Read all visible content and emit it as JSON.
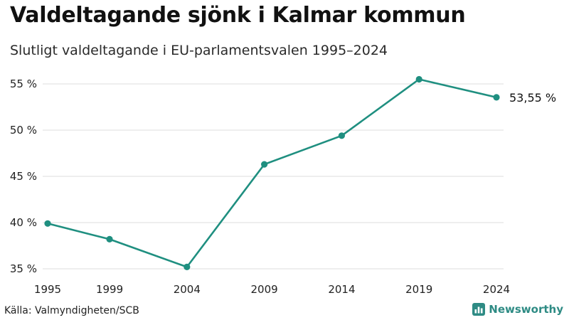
{
  "header": {
    "title": "Valdeltagande sjönk i Kalmar kommun",
    "subtitle": "Slutligt valdeltagande i EU-parlamentsvalen 1995–2024"
  },
  "footer": {
    "source": "Källa: Valmyndigheten/SCB",
    "brand": "Newsworthy",
    "brand_icon": "bar-chart-logo-icon"
  },
  "colors": {
    "line": "#1f8f80",
    "grid": "#dcdcdc",
    "brand": "#2e8b84"
  },
  "chart_data": {
    "type": "line",
    "title": "Valdeltagande sjönk i Kalmar kommun",
    "subtitle": "Slutligt valdeltagande i EU-parlamentsvalen 1995–2024",
    "xlabel": "",
    "ylabel": "",
    "x": [
      1995,
      1999,
      2004,
      2009,
      2014,
      2019,
      2024
    ],
    "series": [
      {
        "values": [
          39.9,
          38.2,
          35.2,
          46.3,
          49.4,
          55.5,
          53.55
        ]
      }
    ],
    "x_ticks": [
      "1995",
      "1999",
      "2004",
      "2009",
      "2014",
      "2019",
      "2024"
    ],
    "y_ticks": [
      "35 %",
      "40 %",
      "45 %",
      "50 %",
      "55 %"
    ],
    "y_tick_values": [
      35,
      40,
      45,
      50,
      55
    ],
    "ylim": [
      35,
      55
    ],
    "end_label": "53,55 %",
    "grid": true,
    "legend": "none",
    "markers": true
  }
}
